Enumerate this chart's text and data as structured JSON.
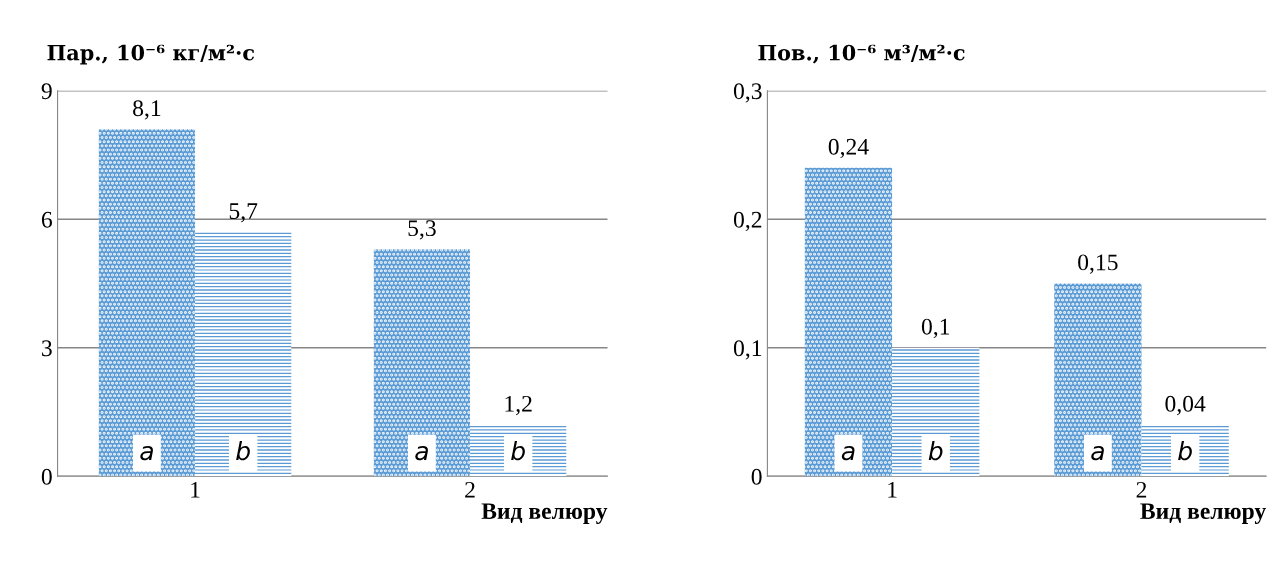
{
  "chart_data": [
    {
      "type": "bar",
      "title": "Пар., 10⁻⁶ кг/м²·с",
      "xlabel": "Вид велюру",
      "categories": [
        "1",
        "2"
      ],
      "series": [
        {
          "name": "a",
          "color": "#5b9bd5",
          "values": [
            8.1,
            5.3
          ],
          "value_labels": [
            "8,1",
            "5,3"
          ]
        },
        {
          "name": "b",
          "color": "#5b9bd5",
          "values": [
            5.7,
            1.2
          ],
          "value_labels": [
            "5,7",
            "1,2"
          ]
        }
      ],
      "ylim": [
        0,
        9
      ],
      "yticks": [
        0,
        3,
        6,
        9
      ],
      "grid": "y"
    },
    {
      "type": "bar",
      "title": "Пов., 10⁻⁶ м³/м²·с",
      "xlabel": "Вид велюру",
      "categories": [
        "1",
        "2"
      ],
      "series": [
        {
          "name": "a",
          "color": "#5b9bd5",
          "values": [
            0.24,
            0.15
          ],
          "value_labels": [
            "0,24",
            "0,15"
          ]
        },
        {
          "name": "b",
          "color": "#5b9bd5",
          "values": [
            0.1,
            0.04
          ],
          "value_labels": [
            "0,1",
            "0,04"
          ]
        }
      ],
      "ylim": [
        0,
        0.3
      ],
      "yticks": [
        {
          "value": 0,
          "label": "0"
        },
        {
          "value": 0.1,
          "label": "0,1"
        },
        {
          "value": 0.2,
          "label": "0,2"
        },
        {
          "value": 0.3,
          "label": "0,3"
        }
      ],
      "grid": "y"
    }
  ]
}
